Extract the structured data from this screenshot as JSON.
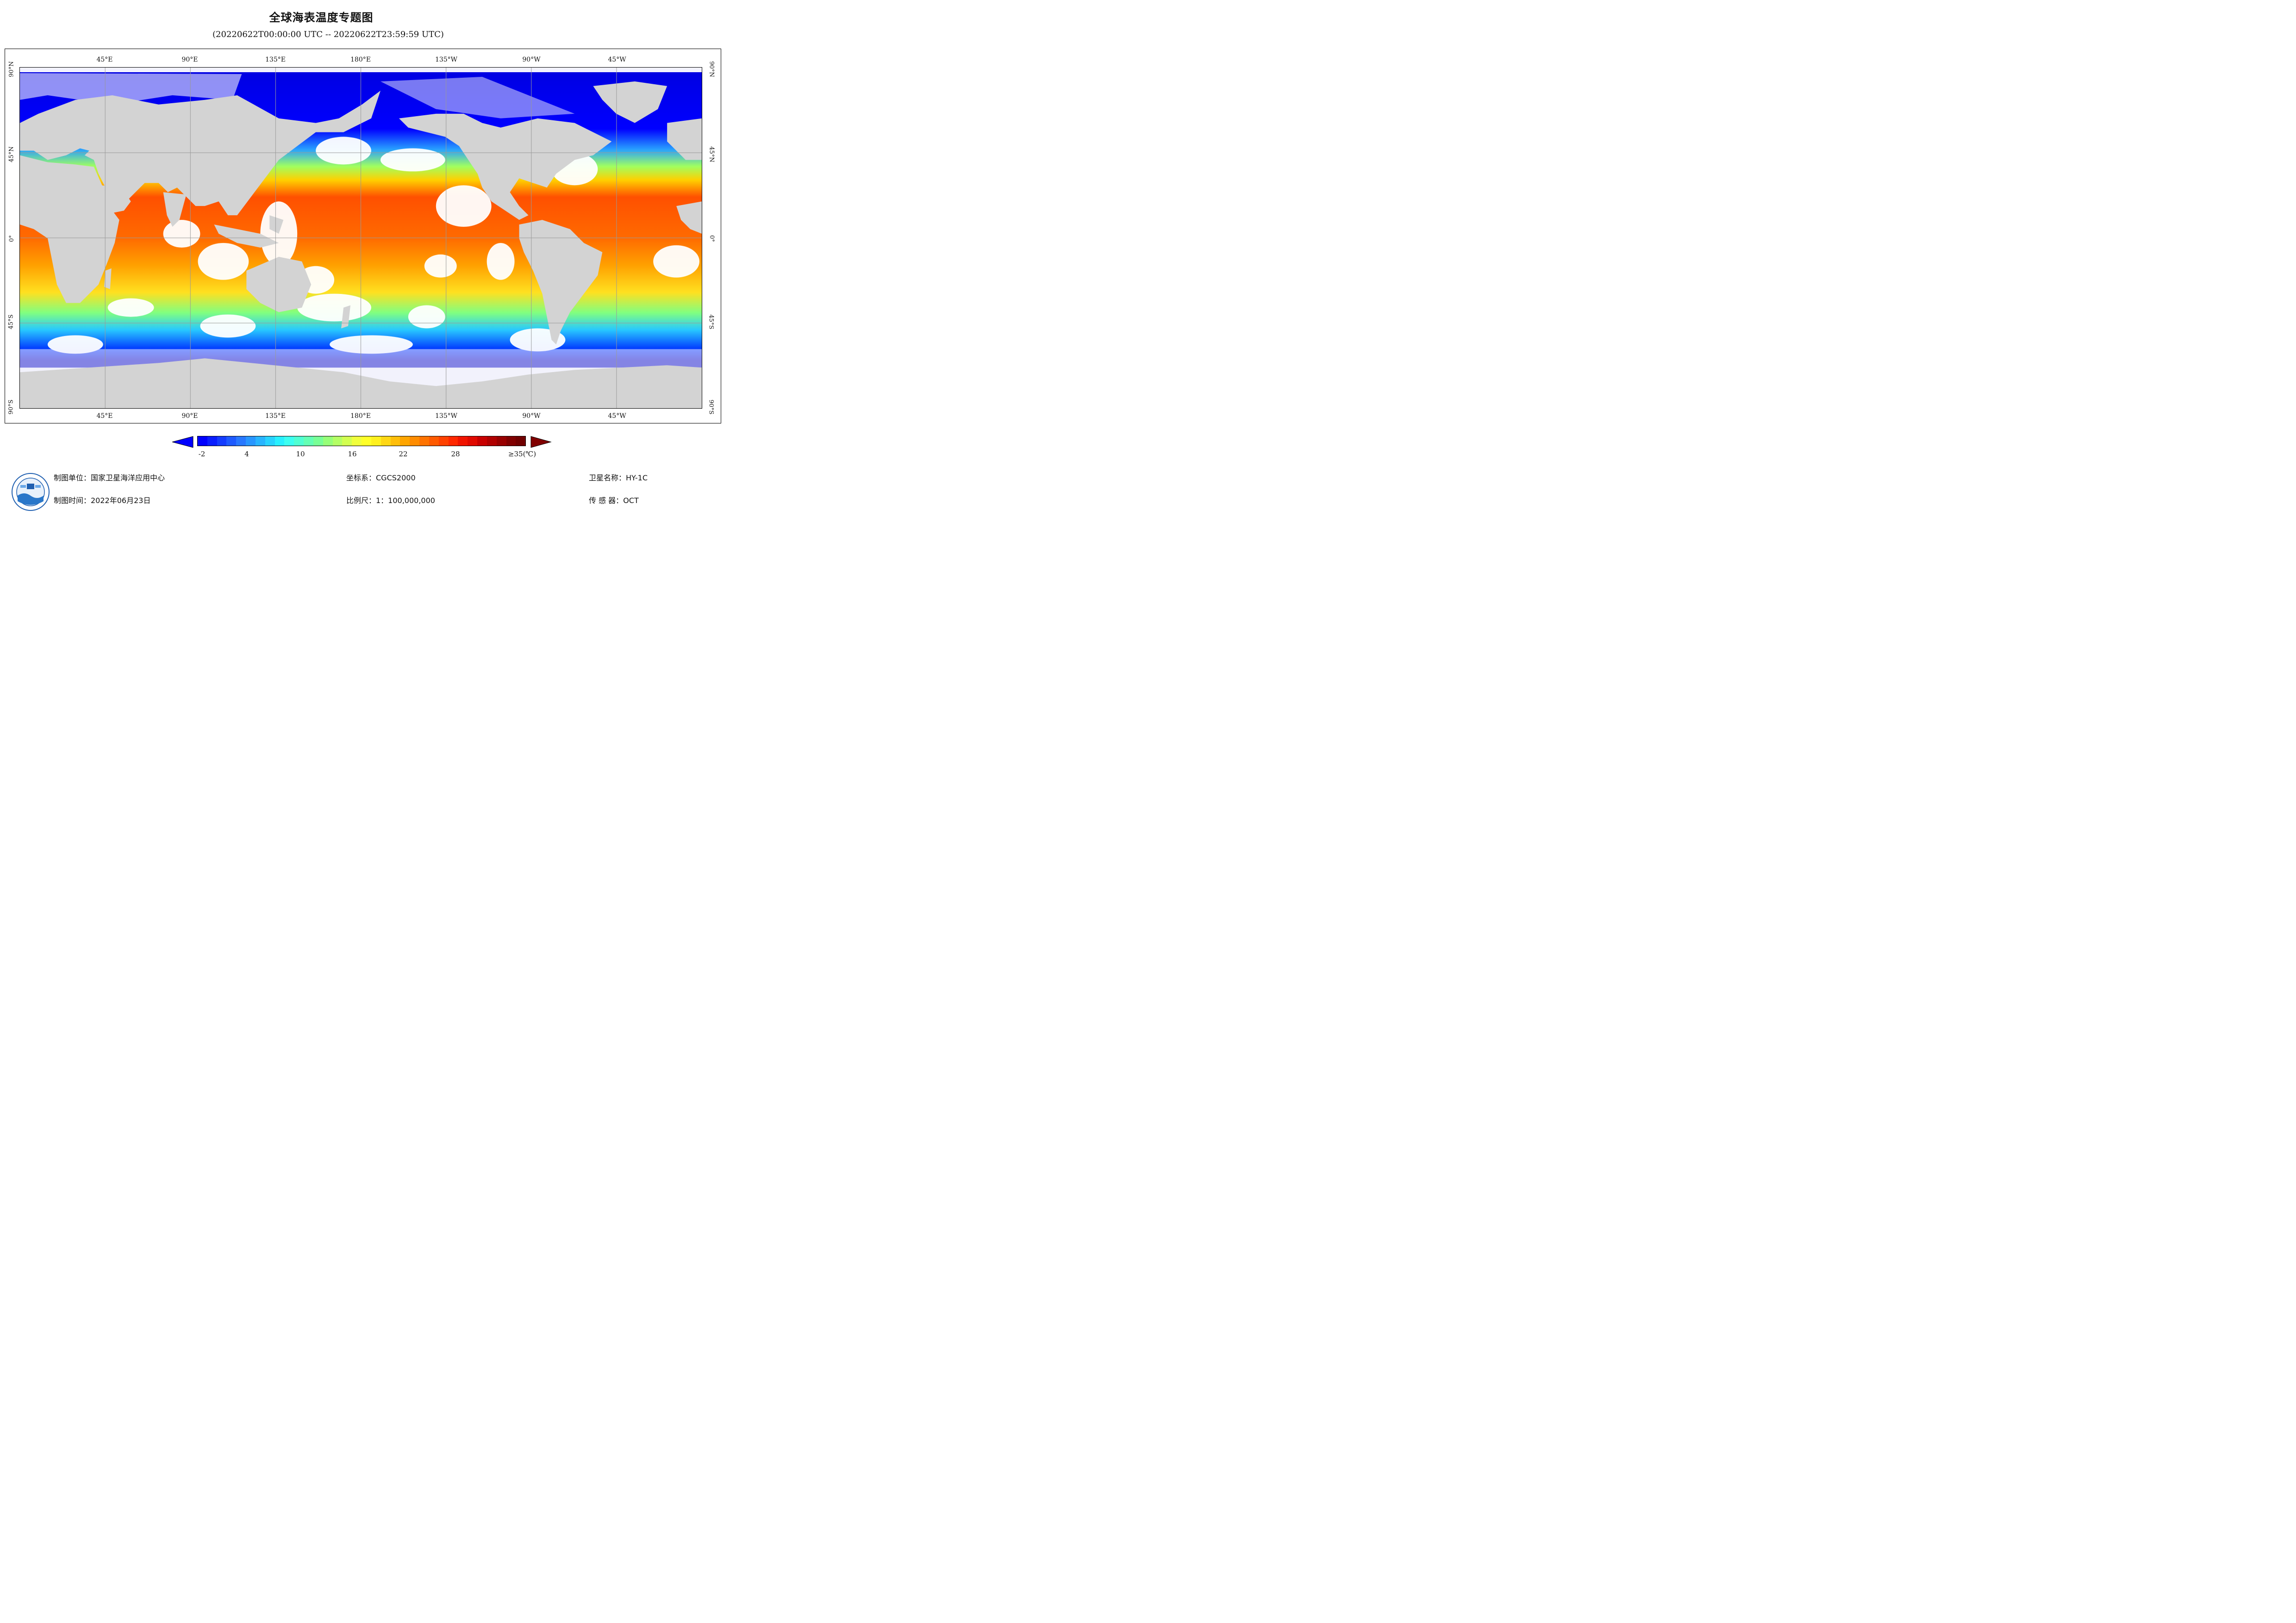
{
  "title": "全球海表温度专题图",
  "subtitle": "(20220622T00:00:00 UTC -- 20220622T23:59:59 UTC)",
  "map": {
    "projection": "equirectangular",
    "lon_range": [
      0,
      360
    ],
    "lat_range": [
      -90,
      90
    ],
    "grid_lon_step": 45,
    "grid_lat_step": 45,
    "lon_labels": [
      "45°E",
      "90°E",
      "135°E",
      "180°E",
      "135°W",
      "90°W",
      "45°W"
    ],
    "lat_labels_left": [
      "90°N",
      "45°N",
      "0°",
      "45°S",
      "90°S"
    ],
    "lat_labels_right": [
      "90°N",
      "45°N",
      "0°",
      "45°S",
      "90°S"
    ],
    "land_color": "#d3d3d3",
    "nodata_color": "#ffffff"
  },
  "colorbar": {
    "ticks": [
      "-2",
      "4",
      "10",
      "16",
      "22",
      "28",
      "≥35(℃)"
    ],
    "min_value": -2,
    "max_value": 35,
    "unit": "℃",
    "colors": [
      "#0000ff",
      "#0a1eff",
      "#143cff",
      "#1e5aff",
      "#2878ff",
      "#2896ff",
      "#28b4ff",
      "#28d2ff",
      "#28f0ff",
      "#3cfff0",
      "#50ffd2",
      "#64ffb4",
      "#78ff96",
      "#96ff78",
      "#b4ff64",
      "#d2ff50",
      "#f0ff3c",
      "#ffff28",
      "#fff01e",
      "#ffd714",
      "#ffbe0a",
      "#ffa500",
      "#ff8c00",
      "#ff7300",
      "#ff5a00",
      "#ff4100",
      "#ff2800",
      "#f01400",
      "#e00a00",
      "#c80000",
      "#b00000",
      "#980000",
      "#800000",
      "#700000"
    ],
    "under_color": "#0000ff",
    "over_color": "#800000"
  },
  "footer": {
    "org_label": "制图单位：国家卫星海洋应用中心",
    "date_label": "制图时间：2022年06月23日",
    "crs_label": "坐标系：CGCS2000",
    "scale_label": "比例尺：1：100,000,000",
    "satellite_label": "卫星名称：HY-1C",
    "sensor_label": "传  感  器：OCT"
  },
  "logo": {
    "icon": "nsoas-logo-icon"
  }
}
